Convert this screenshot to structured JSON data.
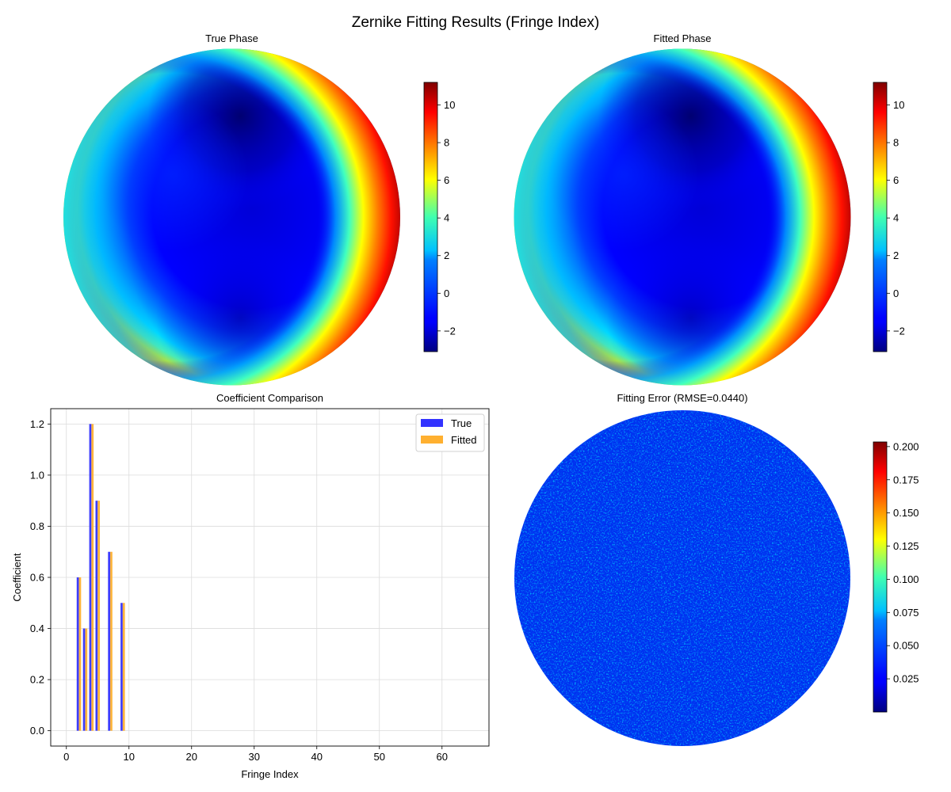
{
  "figure": {
    "title": "Zernike Fitting Results (Fringe Index)"
  },
  "chart_data": [
    {
      "type": "heatmap",
      "title": "True Phase",
      "shape": "circular pupil",
      "colormap": "jet",
      "colorbar": {
        "range": [
          -3.1,
          11.2
        ],
        "ticks": [
          -2,
          0,
          2,
          4,
          6,
          8,
          10
        ],
        "tick_labels": [
          "−2",
          "0",
          "2",
          "4",
          "6",
          "8",
          "10"
        ]
      }
    },
    {
      "type": "heatmap",
      "title": "Fitted Phase",
      "shape": "circular pupil",
      "colormap": "jet",
      "colorbar": {
        "range": [
          -3.1,
          11.2
        ],
        "ticks": [
          -2,
          0,
          2,
          4,
          6,
          8,
          10
        ],
        "tick_labels": [
          "−2",
          "0",
          "2",
          "4",
          "6",
          "8",
          "10"
        ]
      }
    },
    {
      "type": "bar",
      "title": "Coefficient Comparison",
      "xlabel": "Fringe Index",
      "ylabel": "Coefficient",
      "xlim": [
        -2.5,
        67.5
      ],
      "ylim": [
        -0.06,
        1.26
      ],
      "xticks": [
        0,
        10,
        20,
        30,
        40,
        50,
        60
      ],
      "xtick_labels": [
        "0",
        "10",
        "20",
        "30",
        "40",
        "50",
        "60"
      ],
      "yticks": [
        0.0,
        0.2,
        0.4,
        0.6,
        0.8,
        1.0,
        1.2
      ],
      "ytick_labels": [
        "0.0",
        "0.2",
        "0.4",
        "0.6",
        "0.8",
        "1.0",
        "1.2"
      ],
      "grid": true,
      "legend": "top-right",
      "x": [
        2,
        3,
        4,
        5,
        7,
        9
      ],
      "series": [
        {
          "name": "True",
          "color": "#3333ff",
          "values": [
            0.6,
            0.4,
            1.2,
            0.9,
            0.7,
            0.5
          ]
        },
        {
          "name": "Fitted",
          "color": "#ffb030",
          "values": [
            0.6,
            0.4,
            1.2,
            0.9,
            0.7,
            0.5
          ]
        }
      ]
    },
    {
      "type": "heatmap",
      "title": "Fitting Error (RMSE=0.0440)",
      "shape": "circular pupil",
      "colormap": "jet",
      "colorbar": {
        "range": [
          0.0,
          0.2035
        ],
        "ticks": [
          0.025,
          0.05,
          0.075,
          0.1,
          0.125,
          0.15,
          0.175,
          0.2
        ],
        "tick_labels": [
          "0.025",
          "0.050",
          "0.075",
          "0.100",
          "0.125",
          "0.150",
          "0.175",
          "0.200"
        ]
      }
    }
  ]
}
